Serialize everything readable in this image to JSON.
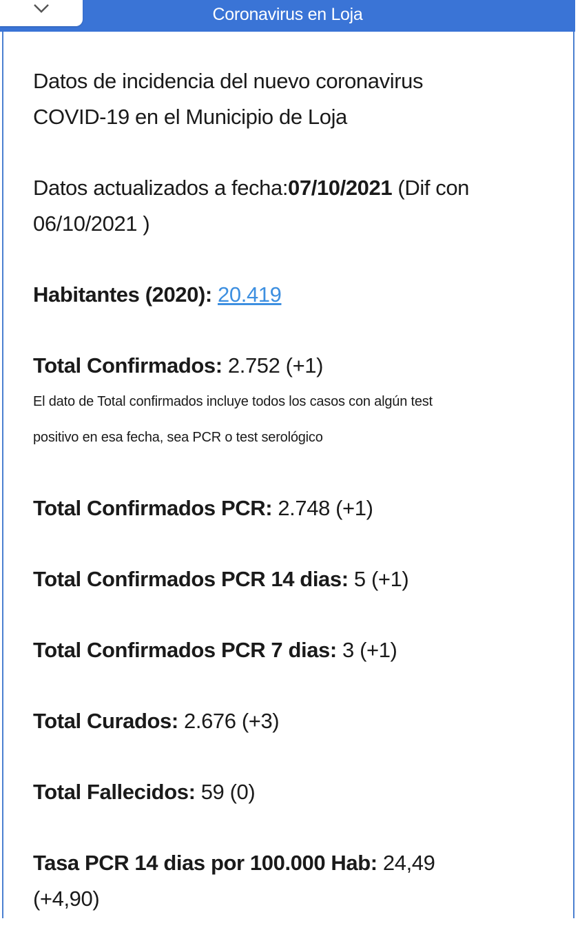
{
  "header": {
    "title": "Coronavirus en Loja",
    "toggle_icon": "chevron-down-icon"
  },
  "intro": {
    "line1": "Datos de incidencia del nuevo coronavirus",
    "line2": "COVID-19 en el Municipio de Loja"
  },
  "updated": {
    "prefix": "Datos actualizados a fecha:",
    "date": "07/10/2021",
    "suffix": " (Dif con",
    "prev_date": "06/10/2021 )"
  },
  "stats": [
    {
      "label": "Habitantes (2020):",
      "value": "20.419"
    },
    {
      "label": "Total Confirmados:",
      "value": " 2.752 (+1)"
    },
    {
      "label": "Total Confirmados PCR:",
      "value": " 2.748 (+1)"
    },
    {
      "label": "Total Confirmados PCR 14 dias:",
      "value": " 5 (+1)"
    },
    {
      "label": "Total Confirmados PCR 7 dias:",
      "value": " 3 (+1)"
    },
    {
      "label": "Total Curados:",
      "value": " 2.676 (+3)"
    },
    {
      "label": "Total Fallecidos:",
      "value": " 59 (0)"
    },
    {
      "label": "Tasa PCR 14 dias por 100.000 Hab:",
      "value": " 24,49",
      "diff": "(+4,90)"
    }
  ],
  "note": {
    "line1": "El dato de Total confirmados incluye todos los casos con algún test",
    "line2": "positivo en esa fecha, sea PCR o test serológico"
  },
  "colors": {
    "header": "#3a74d6",
    "link": "#3d8fe0"
  }
}
